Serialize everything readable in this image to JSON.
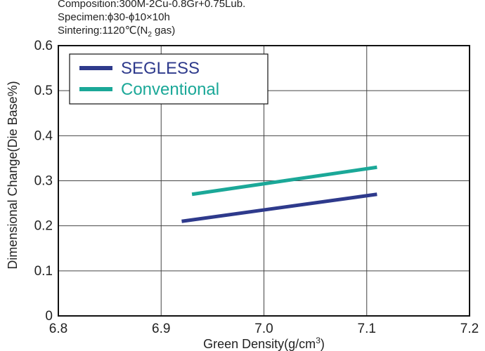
{
  "conditions": {
    "composition": "Composition:300M-2Cu-0.8Gr+0.75Lub.",
    "specimen": "Specimen:ϕ30-ϕ10×10h",
    "sintering_prefix": "Sintering:1120℃(N",
    "sintering_sub": "2",
    "sintering_suffix": " gas)"
  },
  "chart_data": {
    "type": "line",
    "xlabel_main": "Green Density(g/cm",
    "xlabel_sup": "3",
    "xlabel_end": ")",
    "ylabel": "Dimensional Change(Die Base%)",
    "xlim": [
      6.8,
      7.2
    ],
    "ylim": [
      0,
      0.6
    ],
    "x_ticks": [
      "6.8",
      "6.9",
      "7.0",
      "7.1",
      "7.2"
    ],
    "y_ticks": [
      "0",
      "0.1",
      "0.2",
      "0.3",
      "0.4",
      "0.5",
      "0.6"
    ],
    "grid": true,
    "legend_position": "top-left",
    "series": [
      {
        "name": "SEGLESS",
        "color": "#2E3A8C",
        "x": [
          6.92,
          7.11
        ],
        "y": [
          0.21,
          0.27
        ]
      },
      {
        "name": "Conventional",
        "color": "#1BA898",
        "x": [
          6.93,
          7.11
        ],
        "y": [
          0.27,
          0.33
        ]
      }
    ]
  }
}
